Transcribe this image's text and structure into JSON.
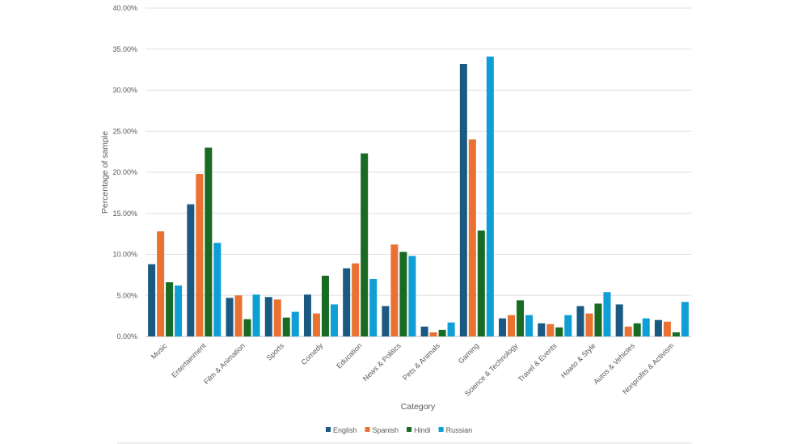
{
  "chart_data": {
    "type": "bar",
    "title": "",
    "xlabel": "Category",
    "ylabel": "Percentage of sample",
    "ylim": [
      0,
      40
    ],
    "yticks": [
      "0.00%",
      "5.00%",
      "10.00%",
      "15.00%",
      "20.00%",
      "25.00%",
      "30.00%",
      "35.00%",
      "40.00%"
    ],
    "grid": true,
    "legend_position": "bottom",
    "categories": [
      "Music",
      "Entertainment",
      "Film & Animation",
      "Sports",
      "Comedy",
      "Education",
      "News & Politics",
      "Pets & Animals",
      "Gaming",
      "Science & Technology",
      "Travel & Events",
      "Howto & Style",
      "Autos & Vehicles",
      "Nonprofits & Activism"
    ],
    "series": [
      {
        "name": "English",
        "color": "#1a5a82",
        "values": [
          8.8,
          16.1,
          4.7,
          4.8,
          5.1,
          8.3,
          3.7,
          1.2,
          33.2,
          2.2,
          1.6,
          3.7,
          3.9,
          2.0
        ]
      },
      {
        "name": "Spanish",
        "color": "#e97132",
        "values": [
          12.8,
          19.8,
          5.0,
          4.5,
          2.8,
          8.9,
          11.2,
          0.5,
          24.0,
          2.6,
          1.5,
          2.8,
          1.2,
          1.8
        ]
      },
      {
        "name": "Hindi",
        "color": "#196b24",
        "values": [
          6.6,
          23.0,
          2.1,
          2.3,
          7.4,
          22.3,
          10.3,
          0.8,
          12.9,
          4.4,
          1.1,
          4.0,
          1.6,
          0.5
        ]
      },
      {
        "name": "Russian",
        "color": "#0f9ed5",
        "values": [
          6.2,
          11.4,
          5.1,
          3.0,
          3.9,
          7.0,
          9.8,
          1.7,
          34.1,
          2.6,
          2.6,
          5.4,
          2.2,
          4.2
        ]
      }
    ]
  }
}
